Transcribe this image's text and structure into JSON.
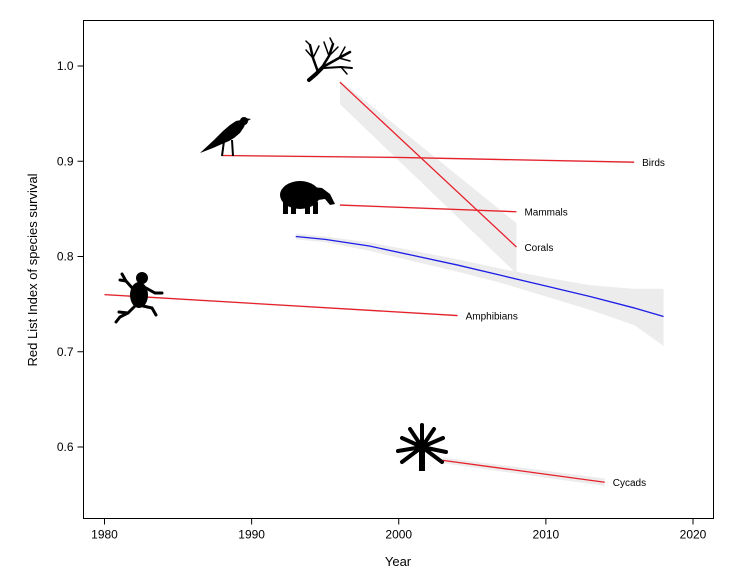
{
  "chart_data": {
    "type": "line",
    "title": "",
    "xlabel": "Year",
    "ylabel": "Red List Index of species survival",
    "xlim": [
      1978.5,
      2021.5
    ],
    "ylim": [
      0.525,
      1.04
    ],
    "x_ticks": [
      1980,
      1990,
      2000,
      2010,
      2020
    ],
    "y_ticks": [
      0.6,
      0.7,
      0.8,
      0.9,
      1.0
    ],
    "x_tick_labels": [
      "1980",
      "1990",
      "2000",
      "2010",
      "2020"
    ],
    "y_tick_labels": [
      "0.6",
      "0.7",
      "0.8",
      "0.9",
      "1.0"
    ],
    "grid": false,
    "series": [
      {
        "name": "Birds",
        "color": "#e8202a",
        "icon": "bird-icon",
        "x": [
          1988,
          2000,
          2016
        ],
        "y": [
          0.906,
          0.904,
          0.899
        ],
        "band_upper": [
          0.907,
          0.905,
          0.9
        ],
        "band_lower": [
          0.905,
          0.903,
          0.898
        ]
      },
      {
        "name": "Mammals",
        "color": "#e8202a",
        "icon": "tapir-icon",
        "x": [
          1996,
          2008
        ],
        "y": [
          0.854,
          0.847
        ],
        "band_upper": [
          0.855,
          0.848
        ],
        "band_lower": [
          0.853,
          0.846
        ]
      },
      {
        "name": "Corals",
        "color": "#e8202a",
        "icon": "coral-icon",
        "x": [
          1996,
          2008
        ],
        "y": [
          0.983,
          0.81
        ],
        "band_upper": [
          0.985,
          0.835
        ],
        "band_lower": [
          0.96,
          0.782
        ]
      },
      {
        "name": "Amphibians",
        "color": "#e8202a",
        "icon": "frog-icon",
        "x": [
          1980,
          2004
        ],
        "y": [
          0.76,
          0.738
        ],
        "band_upper": [
          0.761,
          0.739
        ],
        "band_lower": [
          0.759,
          0.737
        ]
      },
      {
        "name": "Cycads",
        "color": "#e8202a",
        "icon": "palm-icon",
        "x": [
          2003,
          2014
        ],
        "y": [
          0.586,
          0.563
        ],
        "band_upper": [
          0.589,
          0.567
        ],
        "band_lower": [
          0.583,
          0.559
        ]
      },
      {
        "name": "",
        "color": "#1d1de8",
        "icon": "",
        "x": [
          1993,
          1995,
          1998,
          2001,
          2004,
          2007,
          2010,
          2013,
          2016,
          2018
        ],
        "y": [
          0.821,
          0.818,
          0.811,
          0.801,
          0.791,
          0.78,
          0.769,
          0.758,
          0.746,
          0.737
        ],
        "band_upper": [
          0.824,
          0.821,
          0.815,
          0.806,
          0.797,
          0.787,
          0.778,
          0.77,
          0.766,
          0.766
        ],
        "band_lower": [
          0.818,
          0.815,
          0.806,
          0.795,
          0.784,
          0.772,
          0.758,
          0.744,
          0.728,
          0.706
        ]
      }
    ]
  }
}
